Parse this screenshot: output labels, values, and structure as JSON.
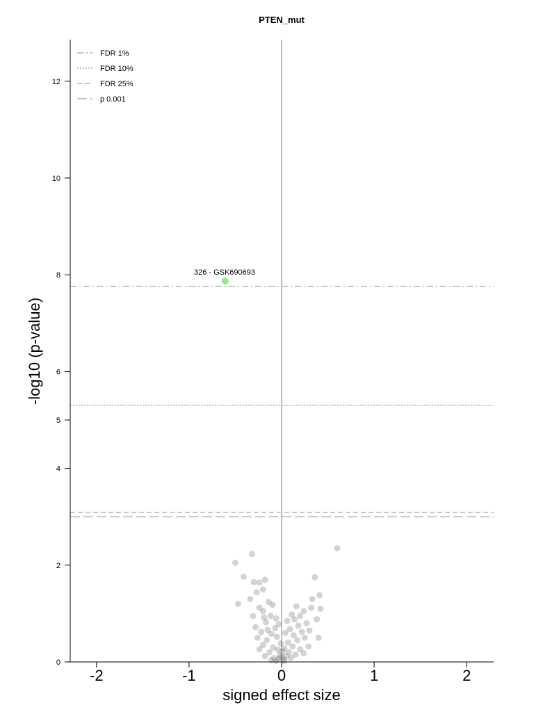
{
  "chart_data": {
    "type": "scatter",
    "title": "PTEN_mut",
    "xlabel": "signed effect size",
    "ylabel": "-log10 (p-value)",
    "xlim": [
      -2.3,
      2.3
    ],
    "ylim": [
      0,
      12.8
    ],
    "x_ticks": [
      "-2",
      "-1",
      "0",
      "1",
      "2"
    ],
    "y_ticks": [
      "0",
      "2",
      "4",
      "5",
      "6",
      "8",
      "10",
      "12"
    ],
    "vertical_reference": 0,
    "thresholds": [
      {
        "name": "FDR 1%",
        "y": 7.76,
        "style": "dashdot"
      },
      {
        "name": "FDR 10%",
        "y": 5.3,
        "style": "dotted"
      },
      {
        "name": "FDR 25%",
        "y": 3.09,
        "style": "dashed"
      },
      {
        "name": "p 0.001",
        "y": 3.0,
        "style": "longdash"
      }
    ],
    "legend_position": "top-left",
    "highlight": {
      "label": "326 - GSK690693",
      "x": -0.61,
      "y": 7.87,
      "color": "#90ee90"
    },
    "points": [
      {
        "x": 0.6,
        "y": 2.35
      },
      {
        "x": -0.5,
        "y": 2.05
      },
      {
        "x": -0.32,
        "y": 2.23
      },
      {
        "x": -0.41,
        "y": 1.76
      },
      {
        "x": -0.3,
        "y": 1.65
      },
      {
        "x": -0.24,
        "y": 1.64
      },
      {
        "x": -0.18,
        "y": 1.7
      },
      {
        "x": -0.27,
        "y": 1.44
      },
      {
        "x": -0.2,
        "y": 1.5
      },
      {
        "x": -0.34,
        "y": 1.3
      },
      {
        "x": -0.47,
        "y": 1.2
      },
      {
        "x": -0.24,
        "y": 1.12
      },
      {
        "x": -0.14,
        "y": 1.24
      },
      {
        "x": -0.1,
        "y": 1.18
      },
      {
        "x": -0.2,
        "y": 1.05
      },
      {
        "x": -0.31,
        "y": 0.95
      },
      {
        "x": -0.12,
        "y": 0.95
      },
      {
        "x": -0.06,
        "y": 0.9
      },
      {
        "x": -0.17,
        "y": 0.82
      },
      {
        "x": -0.28,
        "y": 0.72
      },
      {
        "x": -0.03,
        "y": 0.78
      },
      {
        "x": -0.22,
        "y": 0.62
      },
      {
        "x": -0.11,
        "y": 0.58
      },
      {
        "x": -0.26,
        "y": 0.5
      },
      {
        "x": -0.16,
        "y": 0.45
      },
      {
        "x": -0.05,
        "y": 0.52
      },
      {
        "x": -0.2,
        "y": 0.35
      },
      {
        "x": -0.09,
        "y": 0.3
      },
      {
        "x": -0.24,
        "y": 0.26
      },
      {
        "x": -0.13,
        "y": 0.2
      },
      {
        "x": -0.04,
        "y": 0.25
      },
      {
        "x": -0.18,
        "y": 0.12
      },
      {
        "x": -0.08,
        "y": 0.08
      },
      {
        "x": -0.02,
        "y": 0.14
      },
      {
        "x": -0.11,
        "y": 0.04
      },
      {
        "x": -0.15,
        "y": 0.66
      },
      {
        "x": -0.07,
        "y": 0.7
      },
      {
        "x": -0.19,
        "y": 0.92
      },
      {
        "x": -0.01,
        "y": 0.38
      },
      {
        "x": -0.06,
        "y": 0.02
      },
      {
        "x": 0.02,
        "y": 0.05
      },
      {
        "x": 0.05,
        "y": 0.12
      },
      {
        "x": 0.08,
        "y": 0.2
      },
      {
        "x": 0.03,
        "y": 0.28
      },
      {
        "x": 0.1,
        "y": 0.08
      },
      {
        "x": 0.12,
        "y": 0.32
      },
      {
        "x": 0.15,
        "y": 0.15
      },
      {
        "x": 0.07,
        "y": 0.4
      },
      {
        "x": 0.17,
        "y": 0.45
      },
      {
        "x": 0.2,
        "y": 0.26
      },
      {
        "x": 0.13,
        "y": 0.55
      },
      {
        "x": 0.22,
        "y": 0.62
      },
      {
        "x": 0.09,
        "y": 0.68
      },
      {
        "x": 0.18,
        "y": 0.75
      },
      {
        "x": 0.25,
        "y": 0.5
      },
      {
        "x": 0.27,
        "y": 0.8
      },
      {
        "x": 0.14,
        "y": 0.88
      },
      {
        "x": 0.2,
        "y": 0.95
      },
      {
        "x": 0.3,
        "y": 0.65
      },
      {
        "x": 0.24,
        "y": 1.05
      },
      {
        "x": 0.33,
        "y": 1.3
      },
      {
        "x": 0.41,
        "y": 1.38
      },
      {
        "x": 0.32,
        "y": 1.12
      },
      {
        "x": 0.38,
        "y": 0.88
      },
      {
        "x": 0.4,
        "y": 0.5
      },
      {
        "x": 0.29,
        "y": 0.32
      },
      {
        "x": 0.24,
        "y": 0.18
      },
      {
        "x": 0.36,
        "y": 1.75
      },
      {
        "x": 0.42,
        "y": 1.1
      },
      {
        "x": 0.11,
        "y": 0.98
      },
      {
        "x": 0.06,
        "y": 0.85
      },
      {
        "x": 0.16,
        "y": 1.15
      },
      {
        "x": 0.04,
        "y": 0.6
      },
      {
        "x": 0.01,
        "y": 0.22
      },
      {
        "x": -0.03,
        "y": 0.06
      },
      {
        "x": 0.0,
        "y": 0.1
      },
      {
        "x": 0.03,
        "y": 0.02
      }
    ]
  }
}
